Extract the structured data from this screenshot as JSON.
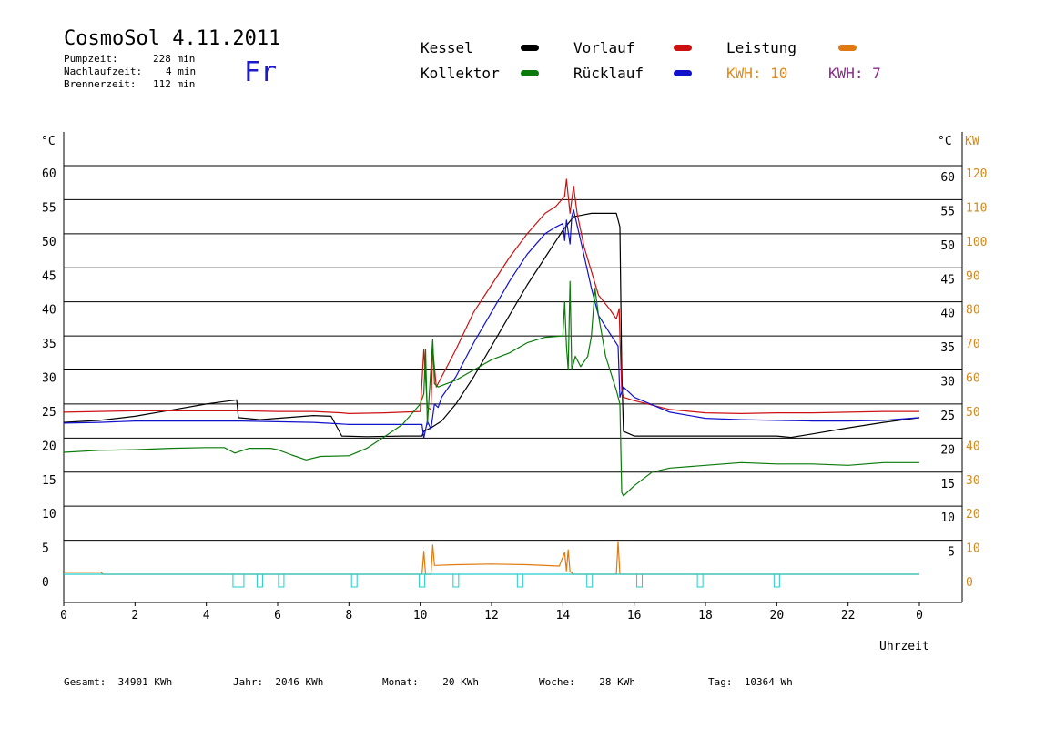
{
  "header": {
    "title": "CosmoSol 4.11.2011",
    "day": "Fr",
    "stats": [
      {
        "label": "Pumpzeit:",
        "value": "228 min"
      },
      {
        "label": "Nachlaufzeit:",
        "value": "4 min"
      },
      {
        "label": "Brennerzeit:",
        "value": "112 min"
      }
    ]
  },
  "legend": {
    "kessel": "Kessel",
    "kollektor": "Kollektor",
    "vorlauf": "Vorlauf",
    "ruecklauf": "Rücklauf",
    "leistung": "Leistung",
    "kwh_a": "KWH: 10",
    "kwh_b": "KWH: 7"
  },
  "colors": {
    "kessel": "#000000",
    "kollektor": "#0a7a0a",
    "vorlauf": "#cc1111",
    "ruecklauf": "#1111cc",
    "leistung": "#e07a10",
    "pump": "#22cccc",
    "kw_axis": "#d08a20"
  },
  "footer": {
    "gesamt": "Gesamt:  34901 KWh",
    "jahr": "Jahr:  2046 KWh",
    "monat": "Monat:    20 KWh",
    "woche": "Woche:    28 KWh",
    "tag": "Tag:  10364 Wh"
  },
  "chart_data": {
    "type": "line",
    "xlabel": "Uhrzeit",
    "ylabel_left": "°C",
    "ylabel_right_c": "°C",
    "ylabel_right_kw": "KW",
    "xlim": [
      0,
      24
    ],
    "ylim": [
      0,
      60
    ],
    "x_ticks": [
      "0",
      "2",
      "4",
      "6",
      "8",
      "10",
      "12",
      "14",
      "16",
      "18",
      "20",
      "22",
      "0"
    ],
    "y_ticks": [
      0,
      5,
      10,
      15,
      20,
      25,
      30,
      35,
      40,
      45,
      50,
      55,
      60
    ],
    "y_ticks_kw": [
      0,
      10,
      20,
      30,
      40,
      50,
      60,
      70,
      80,
      90,
      100,
      110,
      120
    ],
    "grid": true,
    "series": [
      {
        "name": "Kessel",
        "color": "#000000",
        "points": [
          [
            0,
            22.3
          ],
          [
            1,
            22.6
          ],
          [
            2,
            23.2
          ],
          [
            3,
            24.1
          ],
          [
            4,
            25
          ],
          [
            4.85,
            25.6
          ],
          [
            4.9,
            23
          ],
          [
            5.5,
            22.7
          ],
          [
            6,
            22.9
          ],
          [
            7,
            23.3
          ],
          [
            7.5,
            23.2
          ],
          [
            7.8,
            20.3
          ],
          [
            8.5,
            20.2
          ],
          [
            9.5,
            20.3
          ],
          [
            10.05,
            20.3
          ],
          [
            10.1,
            21
          ],
          [
            10.3,
            21.5
          ],
          [
            10.6,
            22.5
          ],
          [
            11,
            25
          ],
          [
            11.5,
            29
          ],
          [
            12,
            33.5
          ],
          [
            12.5,
            38
          ],
          [
            13,
            42.5
          ],
          [
            13.5,
            46.5
          ],
          [
            14,
            50.5
          ],
          [
            14.3,
            52.5
          ],
          [
            14.8,
            53
          ],
          [
            15.5,
            53
          ],
          [
            15.6,
            51
          ],
          [
            15.65,
            30
          ],
          [
            15.7,
            21
          ],
          [
            16,
            20.3
          ],
          [
            17,
            20.3
          ],
          [
            18,
            20.3
          ],
          [
            19,
            20.3
          ],
          [
            20,
            20.3
          ],
          [
            20.4,
            20.1
          ],
          [
            21,
            20.6
          ],
          [
            22,
            21.5
          ],
          [
            23,
            22.3
          ],
          [
            24,
            23
          ]
        ]
      },
      {
        "name": "Vorlauf",
        "color": "#cc1111",
        "points": [
          [
            0,
            23.8
          ],
          [
            1,
            23.9
          ],
          [
            2,
            24
          ],
          [
            3,
            24
          ],
          [
            4,
            24
          ],
          [
            5,
            24
          ],
          [
            6,
            23.9
          ],
          [
            7,
            23.9
          ],
          [
            7.8,
            23.7
          ],
          [
            8,
            23.6
          ],
          [
            9,
            23.7
          ],
          [
            10,
            23.9
          ],
          [
            10.1,
            33
          ],
          [
            10.2,
            24.5
          ],
          [
            10.3,
            24.2
          ],
          [
            10.35,
            33
          ],
          [
            10.45,
            27.5
          ],
          [
            10.6,
            29
          ],
          [
            11,
            33
          ],
          [
            11.5,
            38.5
          ],
          [
            12,
            42.5
          ],
          [
            12.5,
            46.5
          ],
          [
            13,
            50
          ],
          [
            13.5,
            53
          ],
          [
            13.8,
            54
          ],
          [
            14.05,
            55.5
          ],
          [
            14.1,
            58
          ],
          [
            14.2,
            53
          ],
          [
            14.3,
            57
          ],
          [
            14.4,
            53
          ],
          [
            14.6,
            48
          ],
          [
            15,
            41
          ],
          [
            15.3,
            39
          ],
          [
            15.5,
            37.5
          ],
          [
            15.58,
            39
          ],
          [
            15.6,
            35
          ],
          [
            15.65,
            27
          ],
          [
            15.7,
            26
          ],
          [
            16,
            25.5
          ],
          [
            17,
            24.2
          ],
          [
            18,
            23.7
          ],
          [
            19,
            23.6
          ],
          [
            20,
            23.7
          ],
          [
            21,
            23.7
          ],
          [
            22,
            23.8
          ],
          [
            23,
            23.9
          ],
          [
            24,
            23.9
          ]
        ]
      },
      {
        "name": "Rücklauf",
        "color": "#1111cc",
        "points": [
          [
            0,
            22.2
          ],
          [
            1,
            22.3
          ],
          [
            2,
            22.5
          ],
          [
            3,
            22.5
          ],
          [
            4,
            22.5
          ],
          [
            5,
            22.5
          ],
          [
            6,
            22.4
          ],
          [
            7,
            22.3
          ],
          [
            7.7,
            22.1
          ],
          [
            8,
            22
          ],
          [
            9,
            22
          ],
          [
            10.05,
            22
          ],
          [
            10.1,
            20
          ],
          [
            10.2,
            22.5
          ],
          [
            10.3,
            21.3
          ],
          [
            10.4,
            25
          ],
          [
            10.5,
            24.5
          ],
          [
            10.6,
            26
          ],
          [
            11,
            29
          ],
          [
            11.5,
            34
          ],
          [
            12,
            38.5
          ],
          [
            12.5,
            43
          ],
          [
            13,
            47
          ],
          [
            13.5,
            50
          ],
          [
            13.8,
            51
          ],
          [
            14,
            51.5
          ],
          [
            14.05,
            49
          ],
          [
            14.1,
            52
          ],
          [
            14.2,
            48.5
          ],
          [
            14.25,
            52.5
          ],
          [
            14.3,
            53.5
          ],
          [
            14.5,
            49
          ],
          [
            14.8,
            42
          ],
          [
            15,
            38
          ],
          [
            15.3,
            35.5
          ],
          [
            15.55,
            33.5
          ],
          [
            15.6,
            26
          ],
          [
            15.7,
            27.5
          ],
          [
            16,
            26
          ],
          [
            17,
            23.8
          ],
          [
            18,
            22.9
          ],
          [
            19,
            22.7
          ],
          [
            20,
            22.6
          ],
          [
            21,
            22.5
          ],
          [
            22,
            22.5
          ],
          [
            23,
            22.6
          ],
          [
            24,
            23
          ]
        ]
      },
      {
        "name": "Kollektor",
        "color": "#0a7a0a",
        "points": [
          [
            0,
            17.9
          ],
          [
            1,
            18.2
          ],
          [
            2,
            18.3
          ],
          [
            3,
            18.5
          ],
          [
            4,
            18.6
          ],
          [
            4.5,
            18.6
          ],
          [
            4.8,
            17.8
          ],
          [
            5.2,
            18.5
          ],
          [
            5.8,
            18.5
          ],
          [
            6,
            18.3
          ],
          [
            6.4,
            17.5
          ],
          [
            6.8,
            16.8
          ],
          [
            7.2,
            17.3
          ],
          [
            8,
            17.4
          ],
          [
            8.5,
            18.5
          ],
          [
            9,
            20.2
          ],
          [
            9.5,
            22
          ],
          [
            10,
            25
          ],
          [
            10.1,
            26.5
          ],
          [
            10.15,
            33
          ],
          [
            10.2,
            22
          ],
          [
            10.35,
            34.5
          ],
          [
            10.4,
            28
          ],
          [
            10.5,
            27.5
          ],
          [
            11,
            28.5
          ],
          [
            11.5,
            30
          ],
          [
            12,
            31.5
          ],
          [
            12.5,
            32.5
          ],
          [
            13,
            34
          ],
          [
            13.5,
            34.8
          ],
          [
            14,
            35
          ],
          [
            14.05,
            40
          ],
          [
            14.1,
            33.5
          ],
          [
            14.15,
            30
          ],
          [
            14.2,
            43
          ],
          [
            14.25,
            30
          ],
          [
            14.35,
            32
          ],
          [
            14.5,
            30.5
          ],
          [
            14.7,
            32
          ],
          [
            14.8,
            35
          ],
          [
            14.9,
            42
          ],
          [
            15,
            38
          ],
          [
            15.2,
            32
          ],
          [
            15.5,
            27
          ],
          [
            15.6,
            25
          ],
          [
            15.65,
            12
          ],
          [
            15.7,
            11.5
          ],
          [
            16,
            13
          ],
          [
            16.5,
            15
          ],
          [
            17,
            15.6
          ],
          [
            18,
            16
          ],
          [
            19,
            16.4
          ],
          [
            20,
            16.2
          ],
          [
            21,
            16.2
          ],
          [
            22,
            16
          ],
          [
            23,
            16.4
          ],
          [
            24,
            16.4
          ]
        ]
      },
      {
        "name": "Leistung",
        "color": "#e07a10",
        "points": [
          [
            0,
            0.3
          ],
          [
            1.05,
            0.3
          ],
          [
            1.1,
            0
          ],
          [
            10.05,
            0
          ],
          [
            10.1,
            3.4
          ],
          [
            10.15,
            0
          ],
          [
            10.3,
            0
          ],
          [
            10.35,
            4.3
          ],
          [
            10.4,
            1.3
          ],
          [
            11,
            1.4
          ],
          [
            12,
            1.5
          ],
          [
            13,
            1.4
          ],
          [
            13.9,
            1.2
          ],
          [
            14.05,
            3.2
          ],
          [
            14.1,
            0.5
          ],
          [
            14.15,
            3.6
          ],
          [
            14.2,
            0.4
          ],
          [
            14.3,
            0
          ],
          [
            15.5,
            0
          ],
          [
            15.55,
            4.8
          ],
          [
            15.6,
            0
          ],
          [
            24,
            0
          ]
        ]
      },
      {
        "name": "Pumpe",
        "color": "#22cccc",
        "points": [
          [
            0,
            0
          ],
          [
            24,
            0
          ]
        ]
      }
    ],
    "pump_markers": [
      4.9,
      5.5,
      6.1,
      8.15,
      10.05,
      11.0,
      12.8,
      14.75,
      16.15,
      17.85,
      20.0
    ]
  }
}
